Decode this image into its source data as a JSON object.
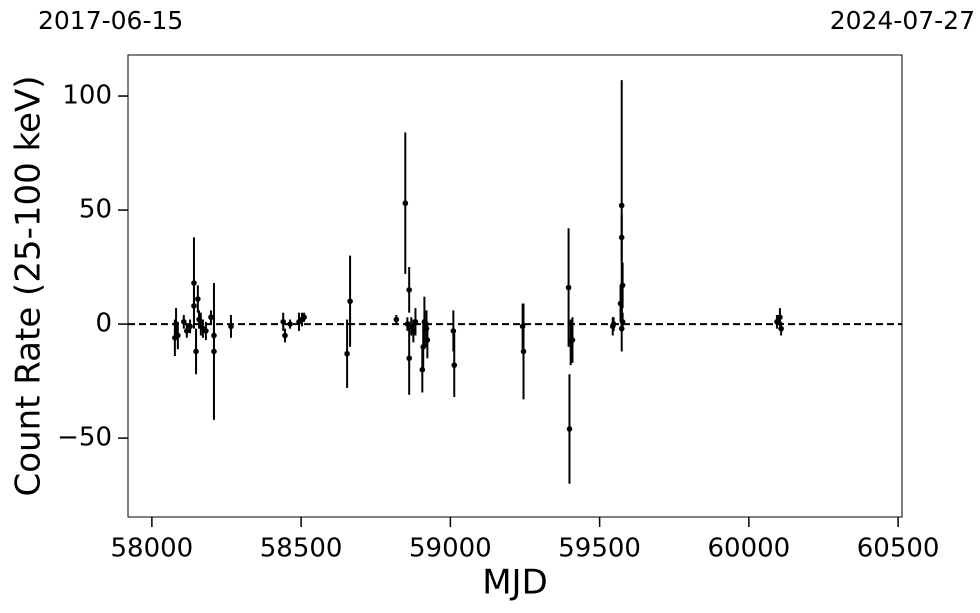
{
  "chart_data": {
    "type": "scatter",
    "top_labels": [
      "2017-06-15",
      "2024-07-27"
    ],
    "xlabel": "MJD",
    "ylabel": "Count Rate (25-100 keV)",
    "xlim": [
      57920,
      60513
    ],
    "ylim": [
      -84.6,
      118
    ],
    "xticks": [
      58000,
      58500,
      59000,
      59500,
      60000,
      60500
    ],
    "yticks": [
      {
        "value": -50,
        "label": "−50"
      },
      0,
      50,
      100
    ],
    "hline": 0,
    "color": "#000000",
    "x": [
      58077,
      58081,
      58087,
      58107,
      58117,
      58128,
      58141,
      58141,
      58148,
      58154,
      58158,
      58164,
      58171,
      58181,
      58198,
      58208,
      58208,
      58265,
      58440,
      58446,
      58463,
      58493,
      58503,
      58510,
      58654,
      58664,
      58819,
      58849,
      58856,
      58862,
      58862,
      58869,
      58876,
      58883,
      58906,
      58909,
      58913,
      58920,
      58923,
      59010,
      59013,
      59242,
      59245,
      59396,
      59399,
      59403,
      59409,
      59544,
      59547,
      59570,
      59574,
      59574,
      59577,
      59574,
      59577,
      60094,
      60104,
      60108
    ],
    "values": [
      -6,
      0,
      -5,
      1,
      -3,
      -1,
      18,
      8,
      -12,
      11,
      2,
      0,
      -2,
      -3,
      3,
      -12,
      -5,
      -1,
      1,
      -5,
      0,
      1,
      2,
      3,
      -13,
      10,
      2,
      53,
      0,
      15,
      -15,
      -1,
      -3,
      1,
      -20,
      -10,
      1,
      -2,
      -7,
      -3,
      -18,
      -1,
      -12,
      16,
      -46,
      -8,
      -7,
      -1,
      0,
      9,
      52,
      38,
      17,
      -2,
      1,
      1,
      3,
      -2
    ],
    "errors": [
      8,
      7,
      6,
      3,
      3,
      3,
      20,
      8,
      10,
      6,
      4,
      5,
      4,
      4,
      3,
      30,
      5,
      5,
      4,
      3,
      2,
      4,
      3,
      2,
      15,
      20,
      2,
      31,
      3,
      10,
      16,
      4,
      5,
      6,
      10,
      10,
      11,
      8,
      8,
      9,
      14,
      10,
      21,
      26,
      24,
      10,
      10,
      4,
      3,
      8,
      55,
      10,
      10,
      10,
      4,
      3,
      4,
      3
    ]
  }
}
